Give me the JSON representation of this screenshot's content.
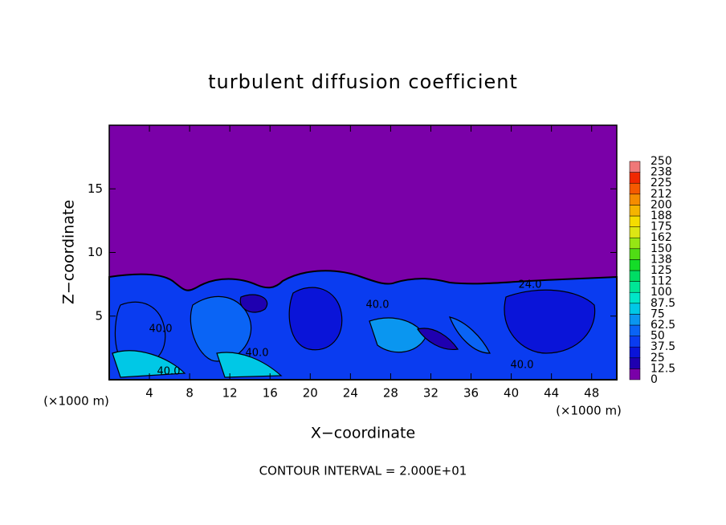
{
  "chart_data": {
    "type": "contour",
    "title": "turbulent diffusion coefficient",
    "xlabel": "X−coordinate",
    "ylabel": "Z−coordinate",
    "x_unit_left": "(×1000 m)",
    "x_unit_right": "(×1000 m)",
    "footer": "CONTOUR INTERVAL = 2.000E+01",
    "xlim": [
      0,
      50.5
    ],
    "ylim": [
      0,
      20
    ],
    "xticks": [
      4,
      8,
      12,
      16,
      20,
      24,
      28,
      32,
      36,
      40,
      44,
      48
    ],
    "yticks": [
      5,
      10,
      15
    ],
    "contour_labels": [
      "40.0",
      "40.0",
      "40.0",
      "40.0",
      "40.0",
      "24.0"
    ],
    "colorbar": {
      "levels": [
        0,
        12.5,
        25,
        37.5,
        50,
        62.5,
        75,
        87.5,
        100,
        112,
        125,
        138,
        150,
        162,
        175,
        188,
        200,
        212,
        225,
        238,
        250
      ],
      "colors": [
        "#7a00a8",
        "#1f00b0",
        "#0a14d8",
        "#0a3cf0",
        "#0a64f5",
        "#0a96f0",
        "#00c8e6",
        "#00e6c8",
        "#00e696",
        "#00dc64",
        "#14dc28",
        "#50dc14",
        "#96e614",
        "#dce614",
        "#f5dc00",
        "#f5b400",
        "#f58c00",
        "#f55a00",
        "#f02800",
        "#f07878"
      ]
    }
  }
}
